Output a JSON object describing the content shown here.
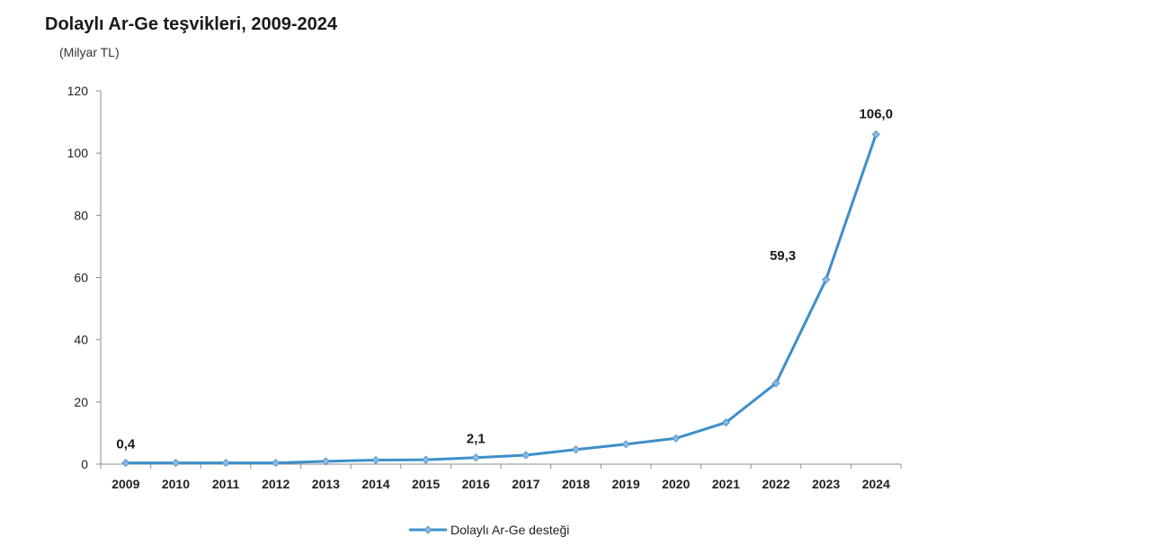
{
  "chart_data": {
    "type": "line",
    "title": "Dolaylı Ar-Ge teşvikleri, 2009-2024",
    "unit_label": "(Milyar TL)",
    "x": [
      "2009",
      "2010",
      "2011",
      "2012",
      "2013",
      "2014",
      "2015",
      "2016",
      "2017",
      "2018",
      "2019",
      "2020",
      "2021",
      "2022",
      "2023",
      "2024"
    ],
    "series": [
      {
        "name": "Dolaylı Ar-Ge desteği",
        "values": [
          0.4,
          0.4,
          0.4,
          0.4,
          0.9,
          1.3,
          1.4,
          2.1,
          2.9,
          4.7,
          6.4,
          8.3,
          13.4,
          26.0,
          59.3,
          106.0
        ],
        "color": "#3d8fc9",
        "marker_color": "#8fb7e0"
      }
    ],
    "annotations": [
      {
        "index": 0,
        "text": "0,4"
      },
      {
        "index": 7,
        "text": "2,1"
      },
      {
        "index": 14,
        "text": "59,3"
      },
      {
        "index": 15,
        "text": "106,0"
      }
    ],
    "ylim": [
      0,
      120
    ],
    "yticks": [
      "0",
      "20",
      "40",
      "60",
      "80",
      "100",
      "120"
    ],
    "grid": false,
    "legend_position": "bottom"
  }
}
